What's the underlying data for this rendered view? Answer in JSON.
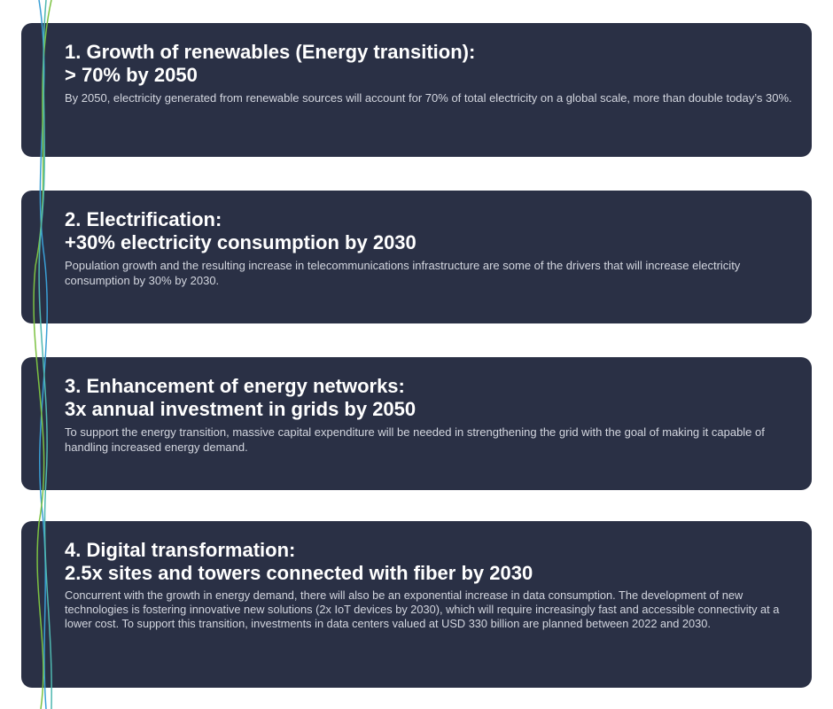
{
  "cards": [
    {
      "title_line1": "1. Growth of renewables (Energy transition):",
      "title_line2": "> 70% by 2050",
      "description": "By 2050, electricity generated from renewable sources will account for 70% of total electricity on a global scale, more than double today’s 30%."
    },
    {
      "title_line1": "2. Electrification:",
      "title_line2": "+30% electricity consumption by 2030",
      "description": "Population growth and the resulting increase in telecommunications infrastructure are some of the drivers that will increase electricity consumption by 30% by 2030."
    },
    {
      "title_line1": "3. Enhancement of energy networks:",
      "title_line2": "3x annual investment in grids by 2050",
      "description": "To support the energy transition, massive capital expenditure will be needed in strengthening the grid with the goal of making it capable of handling increased energy demand."
    },
    {
      "title_line1": "4. Digital transformation:",
      "title_line2": "2.5x sites and towers connected with fiber by 2030",
      "description": "Concurrent with the growth in energy demand, there will also be an exponential increase in data consumption. The development of new technologies is fostering innovative new solutions (2x IoT devices by 2030), which will require increasingly fast and accessible connectivity at a lower cost. To support this transition, investments in data centers valued at USD 330 billion are planned between 2022 and 2030."
    }
  ],
  "colors": {
    "card_background": "#2a3045",
    "title_text": "#ffffff",
    "body_text": "#d3d6df",
    "wave_blue": "#3a9fd6",
    "wave_green": "#7cc242",
    "wave_teal": "#4fb8b0"
  }
}
